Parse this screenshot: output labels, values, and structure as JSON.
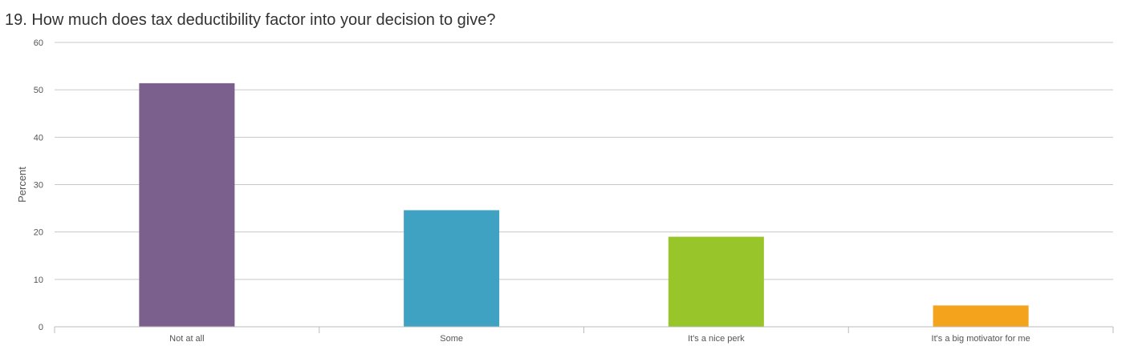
{
  "chart_data": {
    "type": "bar",
    "title": "19. How much does tax deductibility factor into your decision to give?",
    "xlabel": "",
    "ylabel": "Percent",
    "categories": [
      "Not at all",
      "Some",
      "It's a nice perk",
      "It's a big motivator for me"
    ],
    "values": [
      51.4,
      24.6,
      19.0,
      4.5
    ],
    "colors": [
      "#7b5f8c",
      "#40a2c2",
      "#97c52a",
      "#f4a41c"
    ],
    "ylim": [
      0,
      60
    ],
    "yticks": [
      0,
      10,
      20,
      30,
      40,
      50,
      60
    ],
    "grid": true,
    "legend": "none"
  }
}
